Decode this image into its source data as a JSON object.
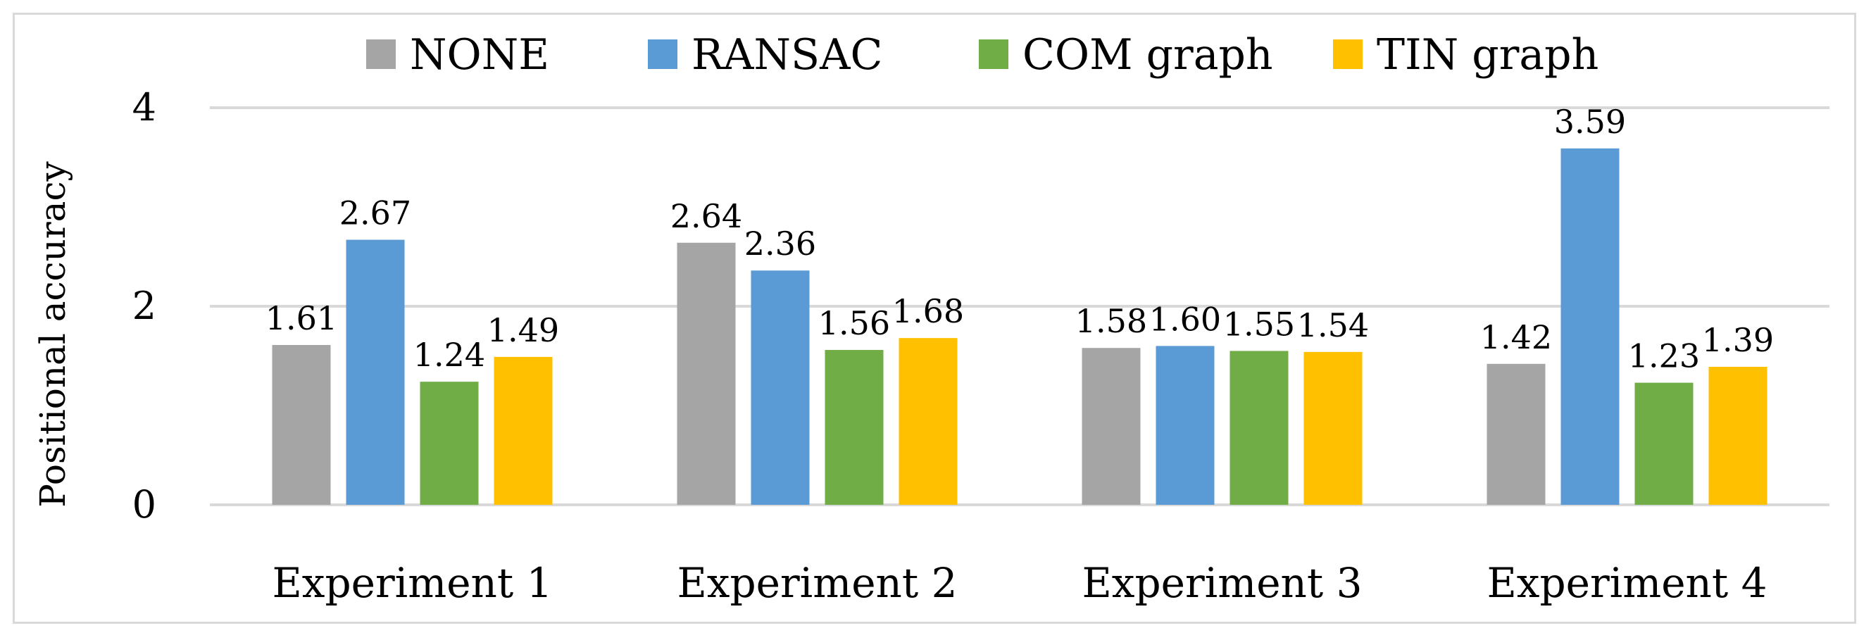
{
  "chart_data": {
    "type": "bar",
    "title": "",
    "xlabel": "",
    "ylabel": "Positional accuracy",
    "ylim": [
      0,
      4
    ],
    "yticks": [
      0,
      2,
      4
    ],
    "ytick_labels": [
      "0",
      "2",
      "4"
    ],
    "grid": true,
    "legend_position": "top",
    "categories": [
      "Experiment 1",
      "Experiment 2",
      "Experiment 3",
      "Experiment 4"
    ],
    "series": [
      {
        "name": "NONE",
        "color": "#a5a5a5",
        "values": [
          1.61,
          2.64,
          1.58,
          1.42
        ],
        "labels": [
          "1.61",
          "2.64",
          "1.58",
          "1.42"
        ]
      },
      {
        "name": "RANSAC",
        "color": "#5b9bd5",
        "values": [
          2.67,
          2.36,
          1.6,
          3.59
        ],
        "labels": [
          "2.67",
          "2.36",
          "1.60",
          "3.59"
        ]
      },
      {
        "name": "COM graph",
        "color": "#70ad47",
        "values": [
          1.24,
          1.56,
          1.55,
          1.23
        ],
        "labels": [
          "1.24",
          "1.56",
          "1.55",
          "1.23"
        ]
      },
      {
        "name": "TIN graph",
        "color": "#ffc000",
        "values": [
          1.49,
          1.68,
          1.54,
          1.39
        ],
        "labels": [
          "1.49",
          "1.68",
          "1.54",
          "1.39"
        ]
      }
    ]
  }
}
